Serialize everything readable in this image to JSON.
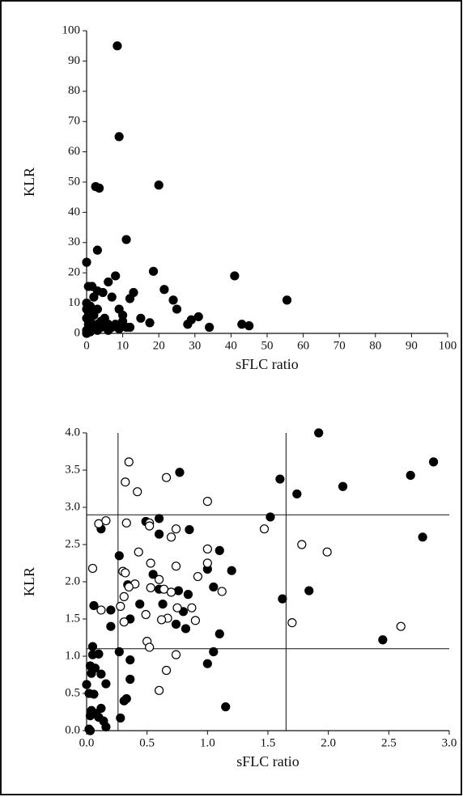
{
  "chart_data": [
    {
      "type": "scatter",
      "x_label": "sFLC ratio",
      "y_label": "KLR",
      "xlim": [
        0,
        100
      ],
      "xticks": [
        0,
        10,
        20,
        30,
        40,
        50,
        60,
        70,
        80,
        90,
        100
      ],
      "ylim": [
        0,
        100
      ],
      "yticks": [
        0,
        10,
        20,
        30,
        40,
        50,
        60,
        70,
        80,
        90,
        100
      ],
      "series": [
        {
          "color": "#000000",
          "marker_fill": "#000000",
          "x": [
            8.5,
            9,
            2.5,
            3.5,
            20,
            11,
            3,
            0,
            18.5,
            41,
            8,
            0.5,
            1.5,
            6,
            21.5,
            3,
            4.5,
            13,
            12,
            24,
            55.5,
            2,
            7,
            0,
            1,
            3,
            9,
            25,
            0.5,
            2,
            5,
            10,
            15,
            10,
            0,
            1,
            3,
            4,
            6,
            8,
            17.5,
            28,
            29,
            31,
            43,
            45,
            34,
            11,
            9,
            12,
            6,
            0,
            1,
            2,
            0,
            1,
            3,
            4,
            7,
            0.5,
            2,
            0,
            1
          ],
          "values": [
            95,
            65,
            48.5,
            48,
            49,
            31,
            27.5,
            23.5,
            20.5,
            19,
            19,
            15.5,
            15.5,
            17,
            14.5,
            14,
            13.5,
            13.5,
            11.5,
            11,
            11,
            12,
            12,
            10,
            9,
            8,
            8,
            8,
            7,
            6,
            5,
            6,
            5,
            4,
            5,
            4,
            3,
            4,
            3,
            3,
            3.5,
            3,
            4.5,
            5.5,
            3,
            2.5,
            2,
            2,
            1.5,
            2,
            1,
            1,
            1,
            2,
            0,
            0.5,
            1,
            2,
            2,
            3,
            7,
            8,
            6
          ]
        }
      ]
    },
    {
      "type": "scatter",
      "x_label": "sFLC ratio",
      "y_label": "KLR",
      "xlim": [
        0,
        3
      ],
      "xticks": [
        {
          "value": 0,
          "label": "0.0"
        },
        0.5,
        {
          "value": 1,
          "label": "1.0"
        },
        1.5,
        {
          "value": 2,
          "label": "2.0"
        },
        2.5,
        {
          "value": 3,
          "label": "3.0"
        }
      ],
      "ylim": [
        0,
        4
      ],
      "yticks": [
        {
          "value": 0,
          "label": "0.0"
        },
        0.5,
        {
          "value": 1,
          "label": "1.0"
        },
        1.5,
        {
          "value": 2,
          "label": "2.0"
        },
        2.5,
        {
          "value": 3,
          "label": "3.0"
        },
        3.5,
        {
          "value": 4,
          "label": "4.0"
        }
      ],
      "ref_x": [
        0.26,
        1.65
      ],
      "ref_y": [
        1.1,
        2.9
      ],
      "series": [
        {
          "color": "#000000",
          "marker_fill": "#000000",
          "x": [
            1.92,
            2.87,
            2.68,
            0.77,
            1.6,
            2.12,
            1.74,
            1.52,
            0.49,
            0.6,
            0.12,
            0.85,
            0.6,
            2.78,
            1.1,
            0.27,
            1.0,
            1.2,
            0.55,
            0.34,
            1.05,
            0.6,
            0.76,
            1.84,
            0.63,
            0.84,
            0.44,
            0.8,
            0.06,
            0.2,
            1.62,
            0.36,
            0.74,
            0.82,
            0.27,
            0.2,
            1.1,
            2.45,
            0.05,
            0.05,
            0.1,
            0.36,
            1.05,
            1.0,
            0.03,
            0.07,
            0.04,
            0.12,
            0.36,
            0.16,
            0.0,
            0.02,
            0.06,
            0.33,
            0.31,
            1.15,
            0.12,
            0.04,
            0.08,
            0.03,
            0.1,
            0.28,
            0.14,
            0.16,
            0.02,
            0.03
          ],
          "values": [
            4.0,
            3.61,
            3.43,
            3.47,
            3.38,
            3.28,
            3.18,
            2.87,
            2.81,
            2.85,
            2.71,
            2.7,
            2.64,
            2.6,
            2.42,
            2.35,
            2.17,
            2.15,
            2.1,
            1.96,
            1.93,
            1.9,
            1.88,
            1.88,
            1.7,
            1.83,
            1.7,
            1.6,
            1.68,
            1.62,
            1.77,
            1.5,
            1.43,
            1.37,
            1.06,
            1.4,
            1.3,
            1.22,
            1.13,
            1.02,
            1.03,
            0.95,
            1.06,
            0.9,
            0.87,
            0.84,
            0.77,
            0.76,
            0.69,
            0.63,
            0.62,
            0.5,
            0.49,
            0.43,
            0.4,
            0.32,
            0.3,
            0.27,
            0.23,
            0.2,
            0.18,
            0.17,
            0.13,
            0.05,
            0.02,
            0.0
          ]
        },
        {
          "color": "#000000",
          "marker_fill": "#ffffff",
          "x": [
            0.35,
            0.32,
            0.42,
            0.66,
            1.0,
            0.1,
            0.16,
            0.33,
            0.52,
            0.52,
            0.74,
            1.47,
            0.7,
            0.05,
            0.3,
            0.32,
            0.43,
            0.53,
            1.0,
            1.0,
            0.74,
            1.78,
            1.99,
            0.92,
            0.6,
            0.4,
            0.35,
            0.53,
            0.64,
            0.7,
            1.12,
            0.31,
            0.12,
            0.28,
            0.49,
            0.75,
            0.87,
            0.31,
            0.67,
            0.62,
            0.9,
            1.7,
            2.6,
            0.5,
            0.52,
            0.74,
            0.66,
            0.6
          ],
          "values": [
            3.61,
            3.34,
            3.21,
            3.4,
            3.08,
            2.78,
            2.82,
            2.79,
            2.79,
            2.75,
            2.71,
            2.71,
            2.6,
            2.18,
            2.14,
            2.12,
            2.4,
            2.25,
            2.25,
            2.44,
            2.21,
            2.5,
            2.4,
            2.07,
            2.03,
            1.97,
            1.93,
            1.92,
            1.9,
            1.86,
            1.87,
            1.8,
            1.62,
            1.67,
            1.56,
            1.65,
            1.65,
            1.46,
            1.51,
            1.49,
            1.48,
            1.45,
            1.4,
            1.2,
            1.12,
            1.02,
            0.81,
            0.54
          ]
        }
      ]
    }
  ]
}
